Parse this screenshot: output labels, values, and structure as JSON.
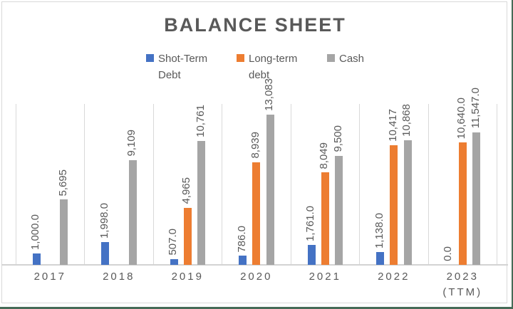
{
  "title": "BALANCE SHEET",
  "colors": {
    "short_term_debt": "#4472C4",
    "long_term_debt": "#ED7D31",
    "cash": "#A5A5A5",
    "text": "#595959",
    "gridline": "#d9d9d9",
    "frame_border": "#d9d9d9",
    "worksheet_edge_green": "#466b57",
    "background": "#ffffff"
  },
  "chart_data": {
    "type": "bar",
    "title": "BALANCE SHEET",
    "xlabel": "",
    "ylabel": "",
    "categories": [
      "2017",
      "2018",
      "2019",
      "2020",
      "2021",
      "2022",
      "2023 (TTM)"
    ],
    "series": [
      {
        "name": "Shot-Term Debt",
        "color": "#4472C4",
        "values": [
          1000,
          1998,
          507,
          786,
          1761,
          1138,
          0
        ],
        "data_labels": [
          "1,000.0",
          "1,998.0",
          "507.0",
          "786.0",
          "1,761.0",
          "1,138.0",
          "0.0"
        ]
      },
      {
        "name": "Long-term debt",
        "color": "#ED7D31",
        "values": [
          null,
          null,
          4965,
          8939,
          8049,
          10417,
          10640
        ],
        "data_labels": [
          null,
          null,
          "4,965",
          "8,939",
          "8,049",
          "10,417",
          "10,640.0"
        ]
      },
      {
        "name": "Cash",
        "color": "#A5A5A5",
        "values": [
          5695,
          9109,
          10761,
          13083,
          9500,
          10868,
          11547
        ],
        "data_labels": [
          "5,695",
          "9,109",
          "10,761",
          "13,083",
          "9,500",
          "10,868",
          "11,547.0"
        ]
      }
    ],
    "ylim": [
      0,
      14000
    ],
    "legend_position": "top-center",
    "grid": "vertical category separators only, no horizontal gridlines, no y-axis labels",
    "data_label_orientation": "rotated 90 degrees, reading bottom to top, above each bar"
  }
}
